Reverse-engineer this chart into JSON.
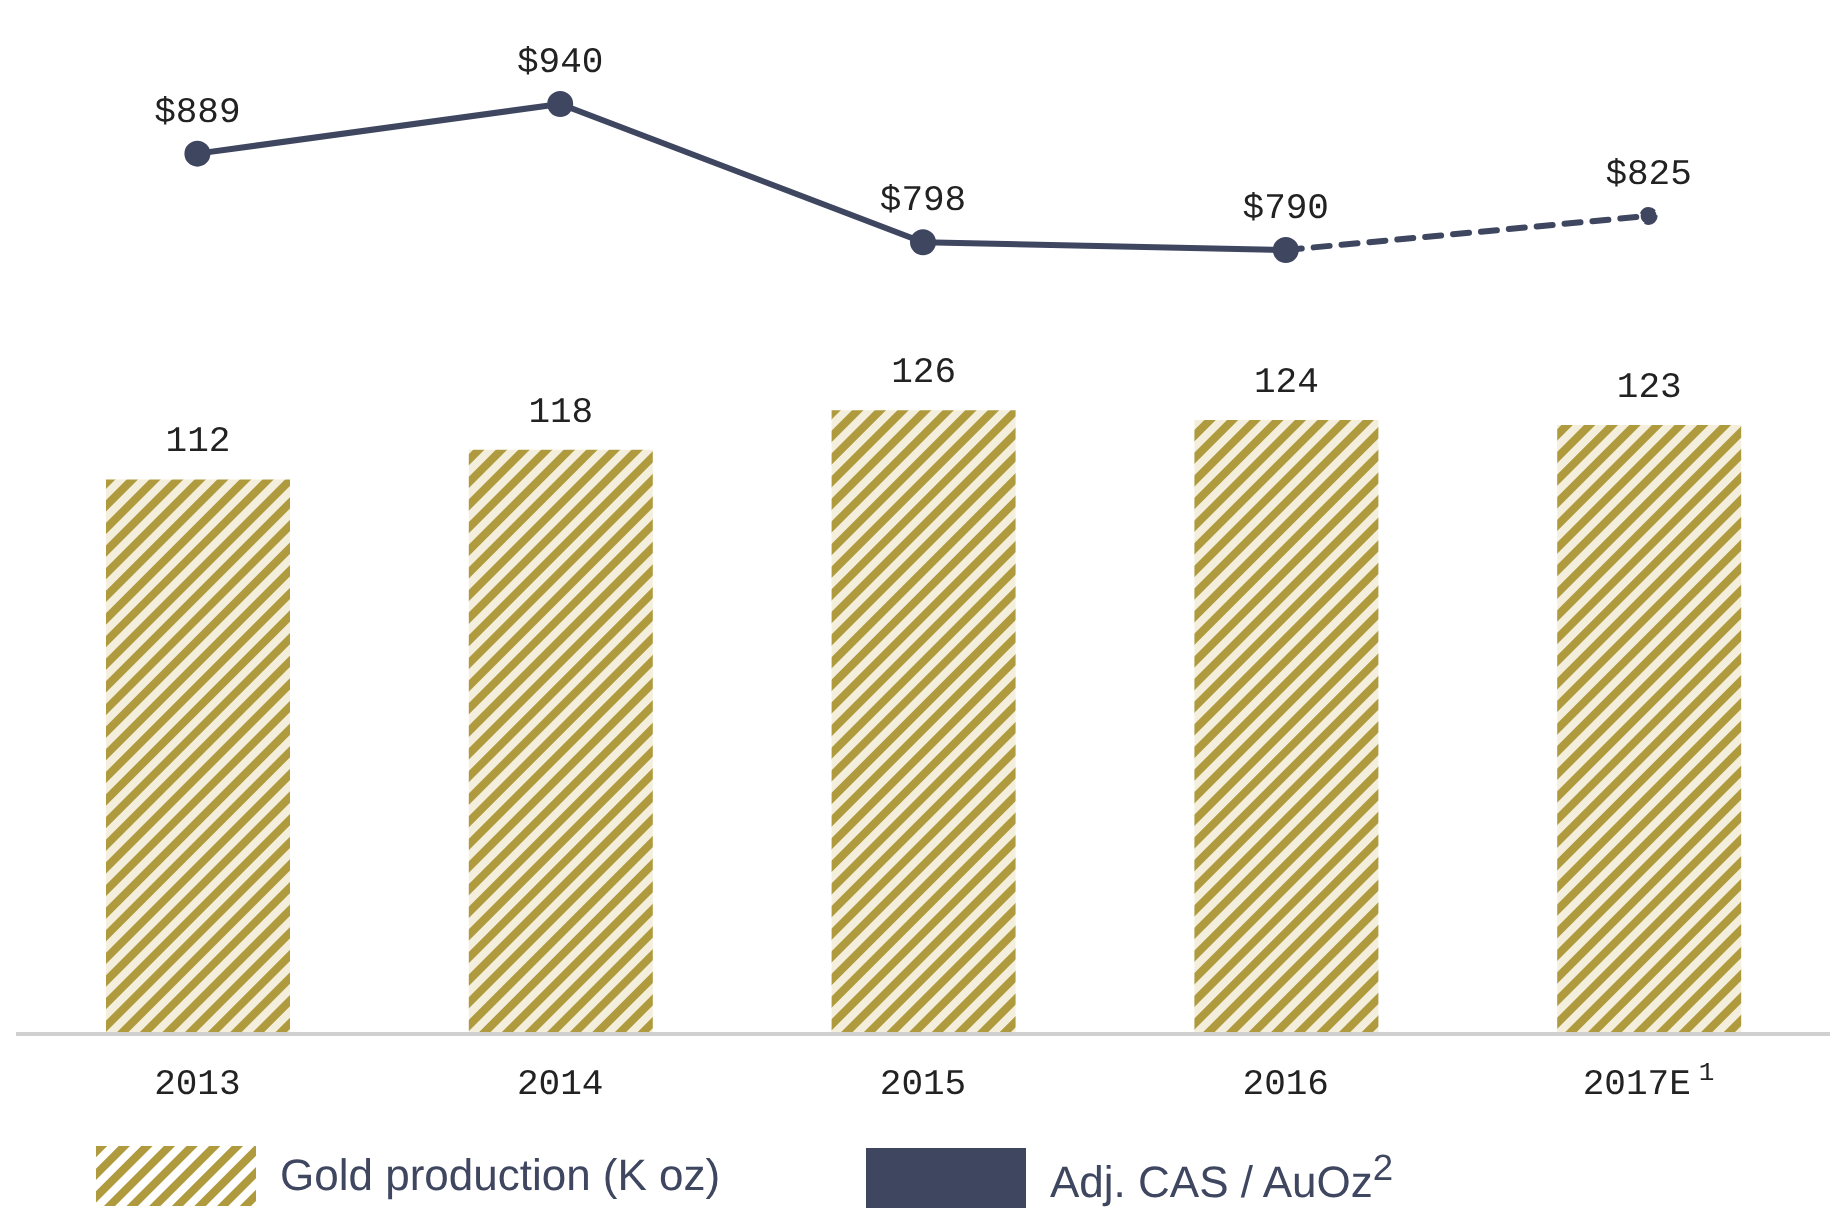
{
  "chart_data": [
    {
      "type": "line",
      "categories": [
        null,
        null,
        null,
        null,
        null
      ],
      "legend": "bottom",
      "series": [
        {
          "name": "Adj. CAS / AuOz$^{2}$",
          "color": "#3f4660",
          "line_style": "solid",
          "marker": "circle",
          "values": [
            889,
            940,
            798,
            790,
            null
          ],
          "value_labels": [
            "$889",
            "$940",
            "$798",
            "$790",
            null
          ]
        },
        {
          "color": "#3f4660",
          "line_style": "dashed",
          "marker": "circle",
          "values": [
            null,
            null,
            null,
            790,
            825
          ],
          "value_labels": [
            null,
            null,
            null,
            null,
            "$825"
          ]
        }
      ]
    },
    {
      "type": "bar",
      "categories": [
        "2013",
        "2014",
        "2015",
        "2016",
        "2017E$^{1}$"
      ],
      "data_labels": true,
      "legend": "bottom left",
      "series": [
        {
          "name": "Gold production (K oz)",
          "color": "#b09a3e",
          "values": [
            112,
            118,
            126,
            124,
            123
          ]
        }
      ]
    }
  ]
}
